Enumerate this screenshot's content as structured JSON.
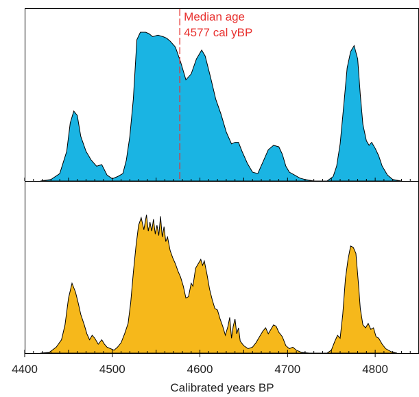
{
  "chart_data": [
    {
      "type": "area",
      "panel": "top",
      "color": "#1ab4e3",
      "xlim": [
        4400,
        4850
      ],
      "ylim": [
        0,
        1.0
      ],
      "x_ticks": [
        4400,
        4500,
        4600,
        4700,
        4800
      ],
      "annotation": {
        "x": 4577,
        "line1": "Median age",
        "line2": "4577 cal yBP",
        "color": "#e8302e"
      },
      "series": [
        {
          "points": [
            [
              4418,
              0.0
            ],
            [
              4430,
              0.01
            ],
            [
              4440,
              0.05
            ],
            [
              4448,
              0.2
            ],
            [
              4452,
              0.39
            ],
            [
              4456,
              0.47
            ],
            [
              4460,
              0.44
            ],
            [
              4464,
              0.3
            ],
            [
              4470,
              0.2
            ],
            [
              4476,
              0.14
            ],
            [
              4482,
              0.1
            ],
            [
              4488,
              0.11
            ],
            [
              4494,
              0.04
            ],
            [
              4500,
              0.015
            ],
            [
              4506,
              0.03
            ],
            [
              4512,
              0.05
            ],
            [
              4516,
              0.14
            ],
            [
              4520,
              0.3
            ],
            [
              4524,
              0.55
            ],
            [
              4528,
              0.95
            ],
            [
              4532,
              1.0
            ],
            [
              4538,
              1.0
            ],
            [
              4542,
              0.99
            ],
            [
              4546,
              0.97
            ],
            [
              4552,
              0.98
            ],
            [
              4558,
              0.97
            ],
            [
              4562,
              0.96
            ],
            [
              4566,
              0.94
            ],
            [
              4572,
              0.9
            ],
            [
              4578,
              0.8
            ],
            [
              4584,
              0.68
            ],
            [
              4590,
              0.72
            ],
            [
              4596,
              0.82
            ],
            [
              4602,
              0.88
            ],
            [
              4606,
              0.84
            ],
            [
              4612,
              0.7
            ],
            [
              4618,
              0.55
            ],
            [
              4624,
              0.45
            ],
            [
              4630,
              0.33
            ],
            [
              4636,
              0.25
            ],
            [
              4640,
              0.26
            ],
            [
              4644,
              0.26
            ],
            [
              4648,
              0.2
            ],
            [
              4654,
              0.12
            ],
            [
              4660,
              0.06
            ],
            [
              4666,
              0.05
            ],
            [
              4672,
              0.13
            ],
            [
              4678,
              0.21
            ],
            [
              4684,
              0.24
            ],
            [
              4690,
              0.23
            ],
            [
              4694,
              0.18
            ],
            [
              4698,
              0.1
            ],
            [
              4702,
              0.06
            ],
            [
              4708,
              0.04
            ],
            [
              4714,
              0.02
            ],
            [
              4720,
              0.01
            ],
            [
              4730,
              0.0
            ],
            [
              4745,
              0.0
            ],
            [
              4752,
              0.03
            ],
            [
              4756,
              0.1
            ],
            [
              4760,
              0.25
            ],
            [
              4764,
              0.5
            ],
            [
              4768,
              0.76
            ],
            [
              4772,
              0.87
            ],
            [
              4776,
              0.91
            ],
            [
              4780,
              0.82
            ],
            [
              4783,
              0.58
            ],
            [
              4786,
              0.38
            ],
            [
              4790,
              0.27
            ],
            [
              4793,
              0.24
            ],
            [
              4796,
              0.26
            ],
            [
              4800,
              0.22
            ],
            [
              4804,
              0.17
            ],
            [
              4808,
              0.1
            ],
            [
              4814,
              0.04
            ],
            [
              4820,
              0.01
            ],
            [
              4830,
              0.0
            ]
          ]
        }
      ]
    },
    {
      "type": "area",
      "panel": "bottom",
      "color": "#f6b81b",
      "xlim": [
        4400,
        4850
      ],
      "ylim": [
        0,
        1.0
      ],
      "x_ticks": [
        4400,
        4500,
        4600,
        4700,
        4800
      ],
      "tick_labels": [
        "4400",
        "4500",
        "4600",
        "4700",
        "4800"
      ],
      "xlabel": "Calibrated years BP",
      "series": [
        {
          "points": [
            [
              4418,
              0.0
            ],
            [
              4428,
              0.005
            ],
            [
              4436,
              0.04
            ],
            [
              4442,
              0.09
            ],
            [
              4446,
              0.19
            ],
            [
              4450,
              0.37
            ],
            [
              4454,
              0.47
            ],
            [
              4458,
              0.41
            ],
            [
              4461,
              0.34
            ],
            [
              4464,
              0.26
            ],
            [
              4468,
              0.19
            ],
            [
              4471,
              0.13
            ],
            [
              4474,
              0.09
            ],
            [
              4477,
              0.12
            ],
            [
              4480,
              0.1
            ],
            [
              4484,
              0.06
            ],
            [
              4488,
              0.09
            ],
            [
              4491,
              0.06
            ],
            [
              4494,
              0.04
            ],
            [
              4498,
              0.03
            ],
            [
              4502,
              0.02
            ],
            [
              4506,
              0.04
            ],
            [
              4510,
              0.07
            ],
            [
              4514,
              0.13
            ],
            [
              4518,
              0.2
            ],
            [
              4521,
              0.34
            ],
            [
              4524,
              0.54
            ],
            [
              4527,
              0.72
            ],
            [
              4530,
              0.86
            ],
            [
              4533,
              0.91
            ],
            [
              4536,
              0.83
            ],
            [
              4539,
              0.93
            ],
            [
              4541,
              0.82
            ],
            [
              4543,
              0.88
            ],
            [
              4545,
              0.82
            ],
            [
              4547,
              0.9
            ],
            [
              4549,
              0.8
            ],
            [
              4551,
              0.86
            ],
            [
              4553,
              0.79
            ],
            [
              4555,
              0.92
            ],
            [
              4557,
              0.78
            ],
            [
              4559,
              0.85
            ],
            [
              4561,
              0.75
            ],
            [
              4563,
              0.78
            ],
            [
              4566,
              0.69
            ],
            [
              4569,
              0.64
            ],
            [
              4572,
              0.6
            ],
            [
              4575,
              0.55
            ],
            [
              4578,
              0.51
            ],
            [
              4581,
              0.45
            ],
            [
              4584,
              0.37
            ],
            [
              4587,
              0.38
            ],
            [
              4590,
              0.47
            ],
            [
              4592,
              0.45
            ],
            [
              4595,
              0.57
            ],
            [
              4598,
              0.6
            ],
            [
              4601,
              0.63
            ],
            [
              4603,
              0.59
            ],
            [
              4605,
              0.62
            ],
            [
              4608,
              0.53
            ],
            [
              4611,
              0.43
            ],
            [
              4614,
              0.36
            ],
            [
              4617,
              0.3
            ],
            [
              4620,
              0.29
            ],
            [
              4623,
              0.23
            ],
            [
              4626,
              0.18
            ],
            [
              4629,
              0.12
            ],
            [
              4632,
              0.18
            ],
            [
              4634,
              0.24
            ],
            [
              4636,
              0.1
            ],
            [
              4638,
              0.18
            ],
            [
              4640,
              0.23
            ],
            [
              4642,
              0.13
            ],
            [
              4644,
              0.17
            ],
            [
              4646,
              0.08
            ],
            [
              4650,
              0.05
            ],
            [
              4655,
              0.03
            ],
            [
              4660,
              0.04
            ],
            [
              4664,
              0.07
            ],
            [
              4668,
              0.11
            ],
            [
              4672,
              0.15
            ],
            [
              4675,
              0.17
            ],
            [
              4678,
              0.13
            ],
            [
              4681,
              0.16
            ],
            [
              4684,
              0.19
            ],
            [
              4687,
              0.18
            ],
            [
              4690,
              0.14
            ],
            [
              4694,
              0.11
            ],
            [
              4698,
              0.05
            ],
            [
              4702,
              0.03
            ],
            [
              4706,
              0.04
            ],
            [
              4710,
              0.02
            ],
            [
              4716,
              0.005
            ],
            [
              4725,
              0.0
            ],
            [
              4745,
              0.0
            ],
            [
              4750,
              0.02
            ],
            [
              4754,
              0.08
            ],
            [
              4757,
              0.12
            ],
            [
              4760,
              0.1
            ],
            [
              4763,
              0.26
            ],
            [
              4766,
              0.5
            ],
            [
              4769,
              0.63
            ],
            [
              4772,
              0.72
            ],
            [
              4775,
              0.71
            ],
            [
              4778,
              0.67
            ],
            [
              4781,
              0.46
            ],
            [
              4783,
              0.3
            ],
            [
              4786,
              0.19
            ],
            [
              4789,
              0.17
            ],
            [
              4792,
              0.2
            ],
            [
              4795,
              0.16
            ],
            [
              4798,
              0.17
            ],
            [
              4801,
              0.11
            ],
            [
              4804,
              0.1
            ],
            [
              4808,
              0.06
            ],
            [
              4812,
              0.03
            ],
            [
              4818,
              0.01
            ],
            [
              4825,
              0.0
            ]
          ]
        }
      ]
    }
  ]
}
